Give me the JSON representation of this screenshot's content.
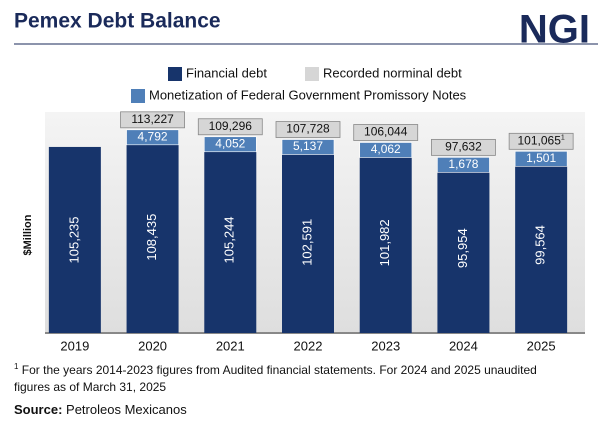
{
  "chart_data": {
    "type": "bar",
    "title": "Pemex Debt Balance",
    "logo": "NGI",
    "ylabel": "$Million",
    "categories": [
      "2019",
      "2020",
      "2021",
      "2022",
      "2023",
      "2024",
      "2025"
    ],
    "series": [
      {
        "name": "Financial debt",
        "color": "#17346b",
        "values": [
          105235,
          108435,
          105244,
          102591,
          101982,
          95954,
          99564
        ],
        "value_labels": [
          "105,235",
          "108,435",
          "105,244",
          "102,591",
          "101,982",
          "95,954",
          "99,564"
        ]
      },
      {
        "name": "Monetization of Federal Government Promissory Notes",
        "color": "#4f7fb8",
        "values": [
          null,
          4792,
          4052,
          5137,
          4062,
          1678,
          1501
        ],
        "value_labels": [
          null,
          "4,792",
          "4,052",
          "5,137",
          "4,062",
          "1,678",
          "1,501"
        ]
      },
      {
        "name": "Recorded norminal debt",
        "color": "#d6d6d6",
        "values": [
          null,
          113227,
          109296,
          107728,
          106044,
          97632,
          101065
        ],
        "value_labels": [
          null,
          "113,227",
          "109,296",
          "107,728",
          "106,044",
          "97,632",
          "101,065"
        ]
      }
    ],
    "ylim": [
      0,
      125000
    ],
    "footnote_ref": "1",
    "footnote": {
      "marker": "1",
      "text": "For the years 2014-2023 figures from Audited financial statements. For 2024 and 2025 unaudited figures as of March 31, 2025"
    },
    "source": {
      "label": "Source:",
      "text": "Petroleos Mexicanos"
    }
  }
}
